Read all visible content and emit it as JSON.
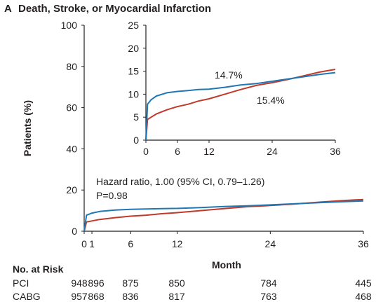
{
  "figure": {
    "panel_letter": "A",
    "title": "Death, Stroke, or Myocardial Infarction",
    "ylabel": "Patients (%)",
    "xlabel": "Month",
    "hazard_text": "Hazard ratio, 1.00 (95% CI, 0.79–1.26)",
    "p_text": "P=0.98",
    "inset_label_pci": "14.7%",
    "inset_label_cabg": "15.4%",
    "risk_title": "No. at Risk"
  },
  "colors": {
    "pci": "#1f77b4",
    "cabg": "#c0392b"
  },
  "chart_data": [
    {
      "type": "line",
      "name": "main",
      "ylim": [
        0,
        100
      ],
      "xlim": [
        0,
        36
      ],
      "yticks": [
        "0",
        "20",
        "40",
        "60",
        "80",
        "100"
      ],
      "xticks": [
        "0",
        "1",
        "6",
        "12",
        "24",
        "36"
      ],
      "series": [
        {
          "name": "PCI",
          "x": [
            0,
            0.3,
            1,
            2,
            4,
            6,
            8,
            10,
            12,
            15,
            18,
            21,
            24,
            27,
            30,
            33,
            36
          ],
          "y": [
            0,
            7.8,
            8.8,
            9.6,
            10.3,
            10.6,
            10.8,
            11.0,
            11.1,
            11.5,
            12.0,
            12.3,
            12.8,
            13.3,
            13.8,
            14.3,
            14.7
          ]
        },
        {
          "name": "CABG",
          "x": [
            0,
            0.3,
            1,
            2,
            4,
            6,
            8,
            10,
            12,
            15,
            18,
            21,
            24,
            27,
            30,
            33,
            36
          ],
          "y": [
            0,
            4.5,
            5.0,
            5.7,
            6.6,
            7.3,
            7.8,
            8.5,
            9.0,
            10.0,
            11.0,
            11.9,
            12.5,
            13.2,
            14.0,
            14.8,
            15.4
          ]
        }
      ]
    },
    {
      "type": "line",
      "name": "inset",
      "ylim": [
        0,
        25
      ],
      "xlim": [
        0,
        36
      ],
      "yticks": [
        "0",
        "5",
        "10",
        "15",
        "20",
        "25"
      ],
      "xticks": [
        "0",
        "6",
        "12",
        "24",
        "36"
      ]
    }
  ],
  "risk_table": {
    "rows": [
      {
        "group": "PCI",
        "values": [
          "948",
          "896",
          "875",
          "850",
          "784",
          "445"
        ]
      },
      {
        "group": "CABG",
        "values": [
          "957",
          "868",
          "836",
          "817",
          "763",
          "468"
        ]
      }
    ]
  }
}
